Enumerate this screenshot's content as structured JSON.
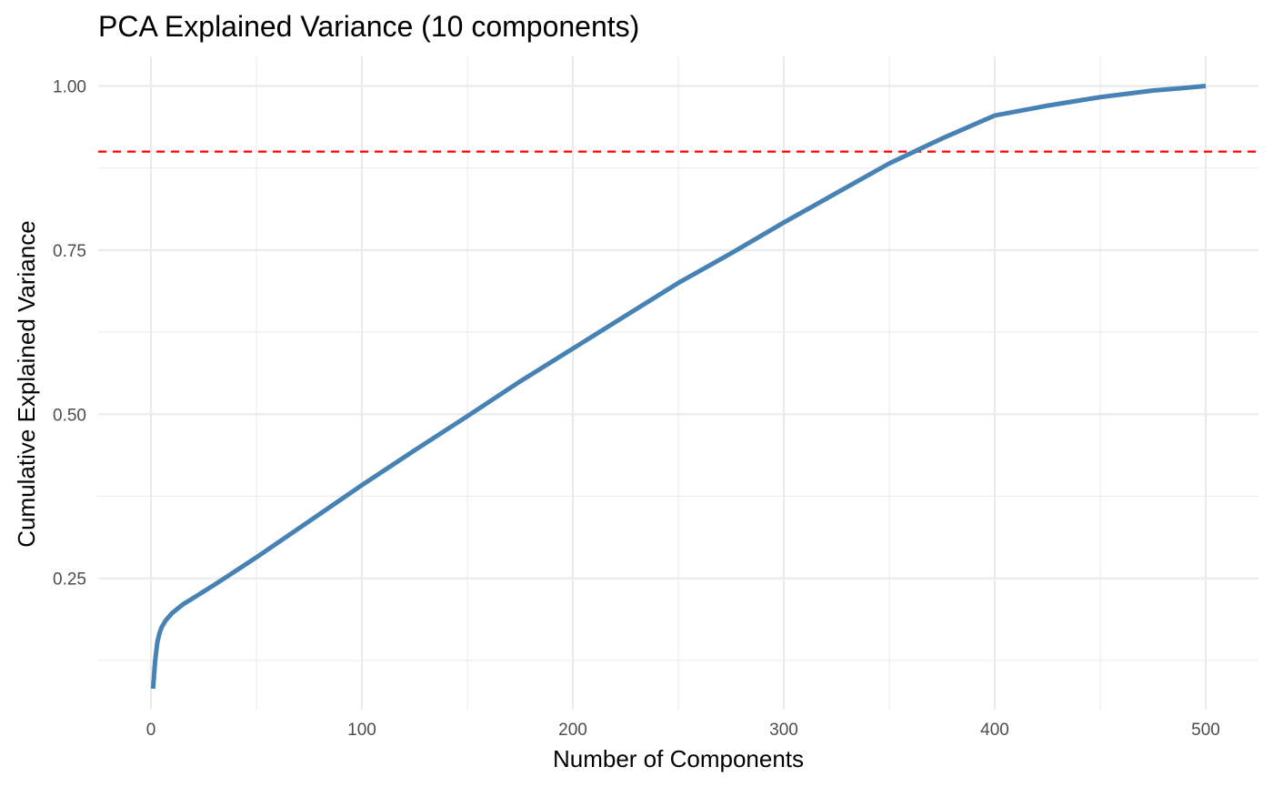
{
  "chart_data": {
    "type": "line",
    "title": "PCA Explained Variance (10 components)",
    "xlabel": "Number of Components",
    "ylabel": "Cumulative Explained Variance",
    "xlim": [
      -25,
      525
    ],
    "ylim": [
      0.05,
      1.045
    ],
    "x_ticks": [
      0,
      100,
      200,
      300,
      400,
      500
    ],
    "x_tick_labels": [
      "0",
      "100",
      "200",
      "300",
      "400",
      "500"
    ],
    "x_minor_ticks": [
      50,
      150,
      250,
      350,
      450
    ],
    "y_ticks": [
      0.25,
      0.5,
      0.75,
      1.0
    ],
    "y_tick_labels": [
      "0.25",
      "0.50",
      "0.75",
      "1.00"
    ],
    "y_minor_ticks": [
      0.125,
      0.375,
      0.625,
      0.875
    ],
    "grid": true,
    "legend": "none",
    "series": [
      {
        "color": "#4682B4",
        "x": [
          1,
          2,
          3,
          4,
          5,
          7,
          10,
          15,
          20,
          30,
          40,
          50,
          75,
          100,
          125,
          150,
          175,
          200,
          225,
          250,
          275,
          300,
          325,
          350,
          375,
          400,
          425,
          450,
          475,
          490,
          500
        ],
        "y": [
          0.082,
          0.125,
          0.152,
          0.166,
          0.175,
          0.186,
          0.197,
          0.21,
          0.22,
          0.24,
          0.261,
          0.282,
          0.337,
          0.392,
          0.445,
          0.497,
          0.55,
          0.6,
          0.65,
          0.7,
          0.745,
          0.792,
          0.837,
          0.882,
          0.92,
          0.955,
          0.97,
          0.983,
          0.993,
          0.997,
          1.0
        ]
      }
    ],
    "reference_lines": [
      {
        "orientation": "horizontal",
        "y": 0.9,
        "color": "#FF0000",
        "style": "dashed"
      }
    ]
  }
}
